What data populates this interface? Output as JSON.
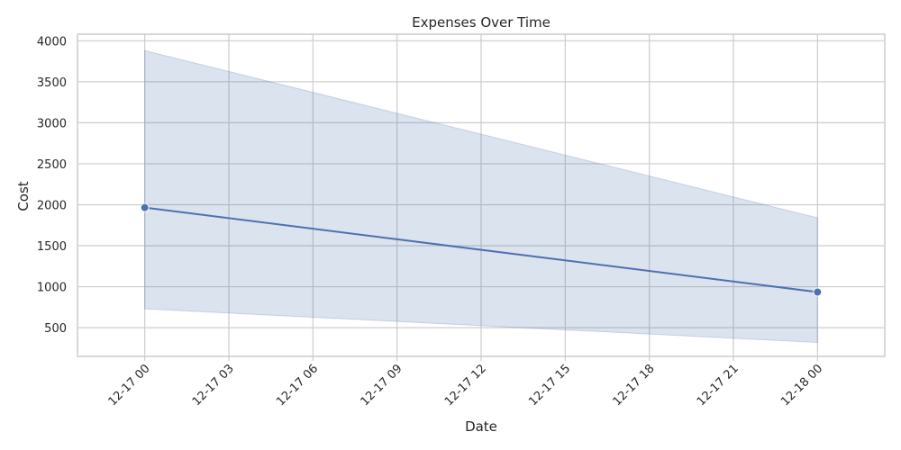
{
  "chart_data": {
    "type": "line",
    "title": "Expenses Over Time",
    "xlabel": "Date",
    "ylabel": "Cost",
    "x_ticks": [
      "12-17 00",
      "12-17 03",
      "12-17 06",
      "12-17 09",
      "12-17 12",
      "12-17 15",
      "12-17 18",
      "12-17 21",
      "12-18 00"
    ],
    "x_tick_hours": [
      0,
      3,
      6,
      9,
      12,
      15,
      18,
      21,
      24
    ],
    "y_ticks": [
      500,
      1000,
      1500,
      2000,
      2500,
      3000,
      3500,
      4000
    ],
    "xlim_hours": [
      -2.4,
      26.4
    ],
    "ylim": [
      150,
      4080
    ],
    "grid": true,
    "legend": "none",
    "series": [
      {
        "points": [
          {
            "x": "12-17 00",
            "y": 1965
          },
          {
            "x": "12-18 00",
            "y": 935
          }
        ],
        "ci_upper": [
          3880,
          1840
        ],
        "ci_lower": [
          730,
          320
        ]
      }
    ],
    "colors": {
      "line": "#4c72b0",
      "band": "#4c72b0",
      "grid": "#cccccc",
      "frame": "#cccccc",
      "text": "#262626"
    }
  }
}
